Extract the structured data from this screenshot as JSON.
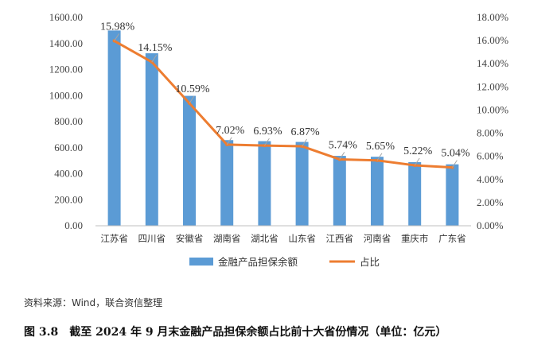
{
  "chart_data": {
    "type": "bar",
    "categories": [
      "江苏省",
      "四川省",
      "安徽省",
      "湖南省",
      "湖北省",
      "山东省",
      "江西省",
      "河南省",
      "重庆市",
      "广东省"
    ],
    "series": [
      {
        "name": "金融产品担保余额",
        "type": "bar",
        "axis": "left",
        "color": "#5b9bd5",
        "values": [
          1500,
          1325,
          998,
          658,
          650,
          644,
          537,
          530,
          489,
          472
        ]
      },
      {
        "name": "占比",
        "type": "line",
        "axis": "right",
        "color": "#ed7d31",
        "values": [
          15.98,
          14.15,
          10.59,
          7.02,
          6.93,
          6.87,
          5.74,
          5.65,
          5.22,
          5.04
        ],
        "labels": [
          "15.98%",
          "14.15%",
          "10.59%",
          "7.02%",
          "6.93%",
          "6.87%",
          "5.74%",
          "5.65%",
          "5.22%",
          "5.04%"
        ]
      }
    ],
    "y_left": {
      "min": 0,
      "max": 1600,
      "ticks": [
        "0.00",
        "200.00",
        "400.00",
        "600.00",
        "800.00",
        "1000.00",
        "1200.00",
        "1400.00",
        "1600.00"
      ]
    },
    "y_right": {
      "min": 0,
      "max": 18,
      "ticks": [
        "0.00%",
        "2.00%",
        "4.00%",
        "6.00%",
        "8.00%",
        "10.00%",
        "12.00%",
        "14.00%",
        "16.00%",
        "18.00%"
      ]
    },
    "grid": false,
    "legend_position": "bottom"
  },
  "source_note": "资料来源：Wind，联合资信整理",
  "caption": "图 3.8　截至 2024 年 9 月末金融产品担保余额占比前十大省份情况（单位：亿元）"
}
